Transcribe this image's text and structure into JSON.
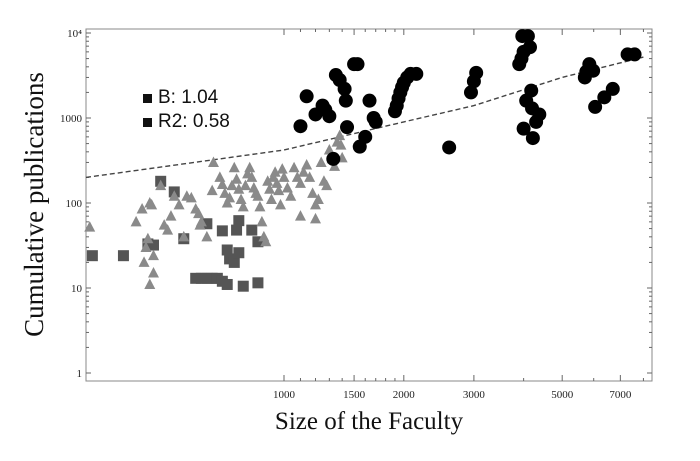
{
  "chart_data": {
    "type": "scatter",
    "title": "",
    "xlabel": "Size of the Faculty",
    "ylabel": "Cumulative publications",
    "xscale": "log",
    "yscale": "log",
    "xlim": [
      315,
      8200
    ],
    "ylim": [
      0.9,
      11000
    ],
    "x_ticks": [
      {
        "value": 1000,
        "label": "1000"
      },
      {
        "value": 1500,
        "label": "1500"
      },
      {
        "value": 2000,
        "label": "2000"
      },
      {
        "value": 3000,
        "label": "3000"
      },
      {
        "value": 5000,
        "label": "5000"
      },
      {
        "value": 7000,
        "label": "7000"
      }
    ],
    "y_ticks": [
      {
        "value": 1,
        "label": "1"
      },
      {
        "value": 10,
        "label": "10"
      },
      {
        "value": 100,
        "label": "100"
      },
      {
        "value": 1000,
        "label": "1000"
      },
      {
        "value": 10000,
        "label": "10⁴"
      }
    ],
    "grid": false,
    "legend": {
      "position": "upper-left",
      "entries": [
        {
          "label": "B: 1.04"
        },
        {
          "label": "R2: 0.58"
        }
      ]
    },
    "fit_line": {
      "style": "dashed",
      "color": "#444444",
      "points": [
        [
          315,
          200
        ],
        [
          1000,
          420
        ],
        [
          2000,
          900
        ],
        [
          3000,
          1400
        ],
        [
          5000,
          3000
        ],
        [
          8000,
          5200
        ]
      ]
    },
    "series": [
      {
        "name": "squares",
        "marker": "square",
        "color": "#555555",
        "points": [
          [
            330,
            24
          ],
          [
            395,
            24
          ],
          [
            490,
            180
          ],
          [
            530,
            135
          ],
          [
            455,
            33
          ],
          [
            470,
            32
          ],
          [
            560,
            38
          ],
          [
            600,
            13
          ],
          [
            620,
            13
          ],
          [
            640,
            13
          ],
          [
            660,
            13
          ],
          [
            680,
            13
          ],
          [
            700,
            12
          ],
          [
            720,
            28
          ],
          [
            730,
            22
          ],
          [
            750,
            20
          ],
          [
            720,
            11
          ],
          [
            770,
            26
          ],
          [
            790,
            10.5
          ],
          [
            860,
            11.5
          ],
          [
            640,
            57
          ],
          [
            700,
            47
          ],
          [
            760,
            48
          ],
          [
            770,
            62
          ],
          [
            860,
            35
          ],
          [
            830,
            48
          ]
        ]
      },
      {
        "name": "triangles",
        "marker": "triangle",
        "color": "#8a8a8a",
        "points": [
          [
            325,
            52
          ],
          [
            425,
            60
          ],
          [
            440,
            85
          ],
          [
            460,
            100
          ],
          [
            465,
            95
          ],
          [
            455,
            38
          ],
          [
            450,
            30
          ],
          [
            445,
            20
          ],
          [
            470,
            24
          ],
          [
            460,
            11
          ],
          [
            470,
            15
          ],
          [
            490,
            160
          ],
          [
            500,
            55
          ],
          [
            510,
            48
          ],
          [
            520,
            70
          ],
          [
            530,
            120
          ],
          [
            545,
            95
          ],
          [
            560,
            40
          ],
          [
            570,
            120
          ],
          [
            585,
            115
          ],
          [
            600,
            85
          ],
          [
            610,
            75
          ],
          [
            615,
            55
          ],
          [
            620,
            60
          ],
          [
            640,
            40
          ],
          [
            660,
            140
          ],
          [
            665,
            300
          ],
          [
            690,
            200
          ],
          [
            700,
            165
          ],
          [
            710,
            130
          ],
          [
            720,
            100
          ],
          [
            730,
            115
          ],
          [
            740,
            160
          ],
          [
            750,
            260
          ],
          [
            760,
            190
          ],
          [
            770,
            145
          ],
          [
            780,
            110
          ],
          [
            790,
            90
          ],
          [
            800,
            160
          ],
          [
            810,
            220
          ],
          [
            820,
            260
          ],
          [
            830,
            200
          ],
          [
            840,
            150
          ],
          [
            850,
            130
          ],
          [
            860,
            120
          ],
          [
            870,
            90
          ],
          [
            880,
            60
          ],
          [
            890,
            40
          ],
          [
            900,
            35
          ],
          [
            910,
            180
          ],
          [
            920,
            145
          ],
          [
            930,
            110
          ],
          [
            940,
            200
          ],
          [
            950,
            230
          ],
          [
            960,
            170
          ],
          [
            970,
            140
          ],
          [
            980,
            95
          ],
          [
            990,
            250
          ],
          [
            1000,
            200
          ],
          [
            1020,
            150
          ],
          [
            1040,
            120
          ],
          [
            1060,
            260
          ],
          [
            1080,
            200
          ],
          [
            1100,
            170
          ],
          [
            1120,
            230
          ],
          [
            1140,
            280
          ],
          [
            1160,
            200
          ],
          [
            1180,
            130
          ],
          [
            1200,
            95
          ],
          [
            1220,
            110
          ],
          [
            1240,
            300
          ],
          [
            1260,
            180
          ],
          [
            1280,
            160
          ],
          [
            1300,
            420
          ],
          [
            1320,
            330
          ],
          [
            1340,
            270
          ],
          [
            1360,
            520
          ],
          [
            1380,
            620
          ],
          [
            1390,
            480
          ],
          [
            1400,
            340
          ],
          [
            1200,
            65
          ],
          [
            1100,
            70
          ]
        ]
      },
      {
        "name": "circles",
        "marker": "circle",
        "color": "#000000",
        "points": [
          [
            1100,
            800
          ],
          [
            1140,
            1800
          ],
          [
            1200,
            1100
          ],
          [
            1250,
            1400
          ],
          [
            1270,
            1250
          ],
          [
            1300,
            1050
          ],
          [
            1330,
            330
          ],
          [
            1350,
            3200
          ],
          [
            1380,
            2800
          ],
          [
            1420,
            2200
          ],
          [
            1430,
            1600
          ],
          [
            1440,
            780
          ],
          [
            1500,
            4300
          ],
          [
            1530,
            4300
          ],
          [
            1550,
            460
          ],
          [
            1600,
            600
          ],
          [
            1640,
            1600
          ],
          [
            1680,
            1000
          ],
          [
            1700,
            900
          ],
          [
            1900,
            1200
          ],
          [
            1920,
            1400
          ],
          [
            1940,
            1700
          ],
          [
            1960,
            2000
          ],
          [
            1980,
            2300
          ],
          [
            2000,
            2600
          ],
          [
            2040,
            3000
          ],
          [
            2080,
            3300
          ],
          [
            2150,
            3300
          ],
          [
            2600,
            450
          ],
          [
            2950,
            2000
          ],
          [
            3000,
            2700
          ],
          [
            3040,
            3400
          ],
          [
            3900,
            4300
          ],
          [
            3950,
            5000
          ],
          [
            4000,
            6000
          ],
          [
            3970,
            9200
          ],
          [
            4100,
            9200
          ],
          [
            4150,
            6800
          ],
          [
            4060,
            1600
          ],
          [
            4000,
            750
          ],
          [
            4180,
            2100
          ],
          [
            4200,
            1300
          ],
          [
            4220,
            580
          ],
          [
            4300,
            900
          ],
          [
            4380,
            1100
          ],
          [
            5700,
            3000
          ],
          [
            5750,
            3500
          ],
          [
            5850,
            4300
          ],
          [
            5980,
            3600
          ],
          [
            6050,
            1350
          ],
          [
            6380,
            1750
          ],
          [
            6700,
            2200
          ],
          [
            7300,
            5600
          ],
          [
            7600,
            5600
          ]
        ]
      }
    ]
  }
}
